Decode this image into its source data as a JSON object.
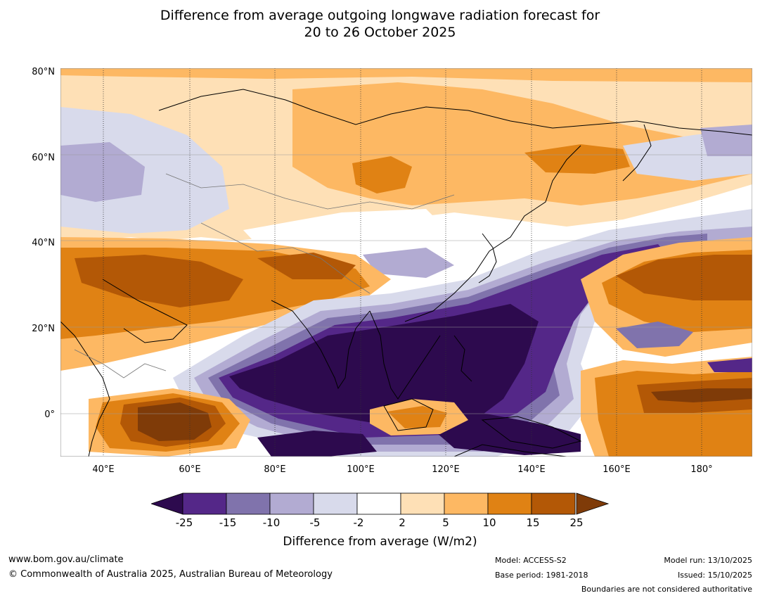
{
  "title": {
    "line1": "Difference from average outgoing longwave radiation forecast for",
    "line2": "20 to 26 October 2025"
  },
  "map": {
    "lat_labels": [
      "80°N",
      "60°N",
      "40°N",
      "20°N",
      "0°"
    ],
    "lon_labels": [
      "40°E",
      "60°E",
      "80°E",
      "100°E",
      "120°E",
      "140°E",
      "160°E",
      "180°"
    ],
    "extent": {
      "lon_min": 30,
      "lon_max": 190,
      "lat_min": -10,
      "lat_max": 80
    }
  },
  "colorbar": {
    "title": "Difference from average (W/m2)",
    "labels": [
      "-25",
      "-15",
      "-10",
      "-5",
      "-2",
      "2",
      "5",
      "10",
      "15",
      "25"
    ],
    "colors": [
      "#2d0a4e",
      "#542788",
      "#8073ac",
      "#b2abd2",
      "#d8daeb",
      "#ffffff",
      "#fee0b6",
      "#fdb863",
      "#e08214",
      "#b35806",
      "#7f3b08"
    ]
  },
  "footer": {
    "url": "www.bom.gov.au/climate",
    "copyright": "© Commonwealth of Australia 2025, Australian Bureau of Meteorology",
    "model": "Model: ACCESS-S2",
    "base_period": "Base period: 1981-2018",
    "model_run": "Model run: 13/10/2025",
    "issued": "Issued: 15/10/2025",
    "disclaimer": "Boundaries are not considered authoritative"
  }
}
